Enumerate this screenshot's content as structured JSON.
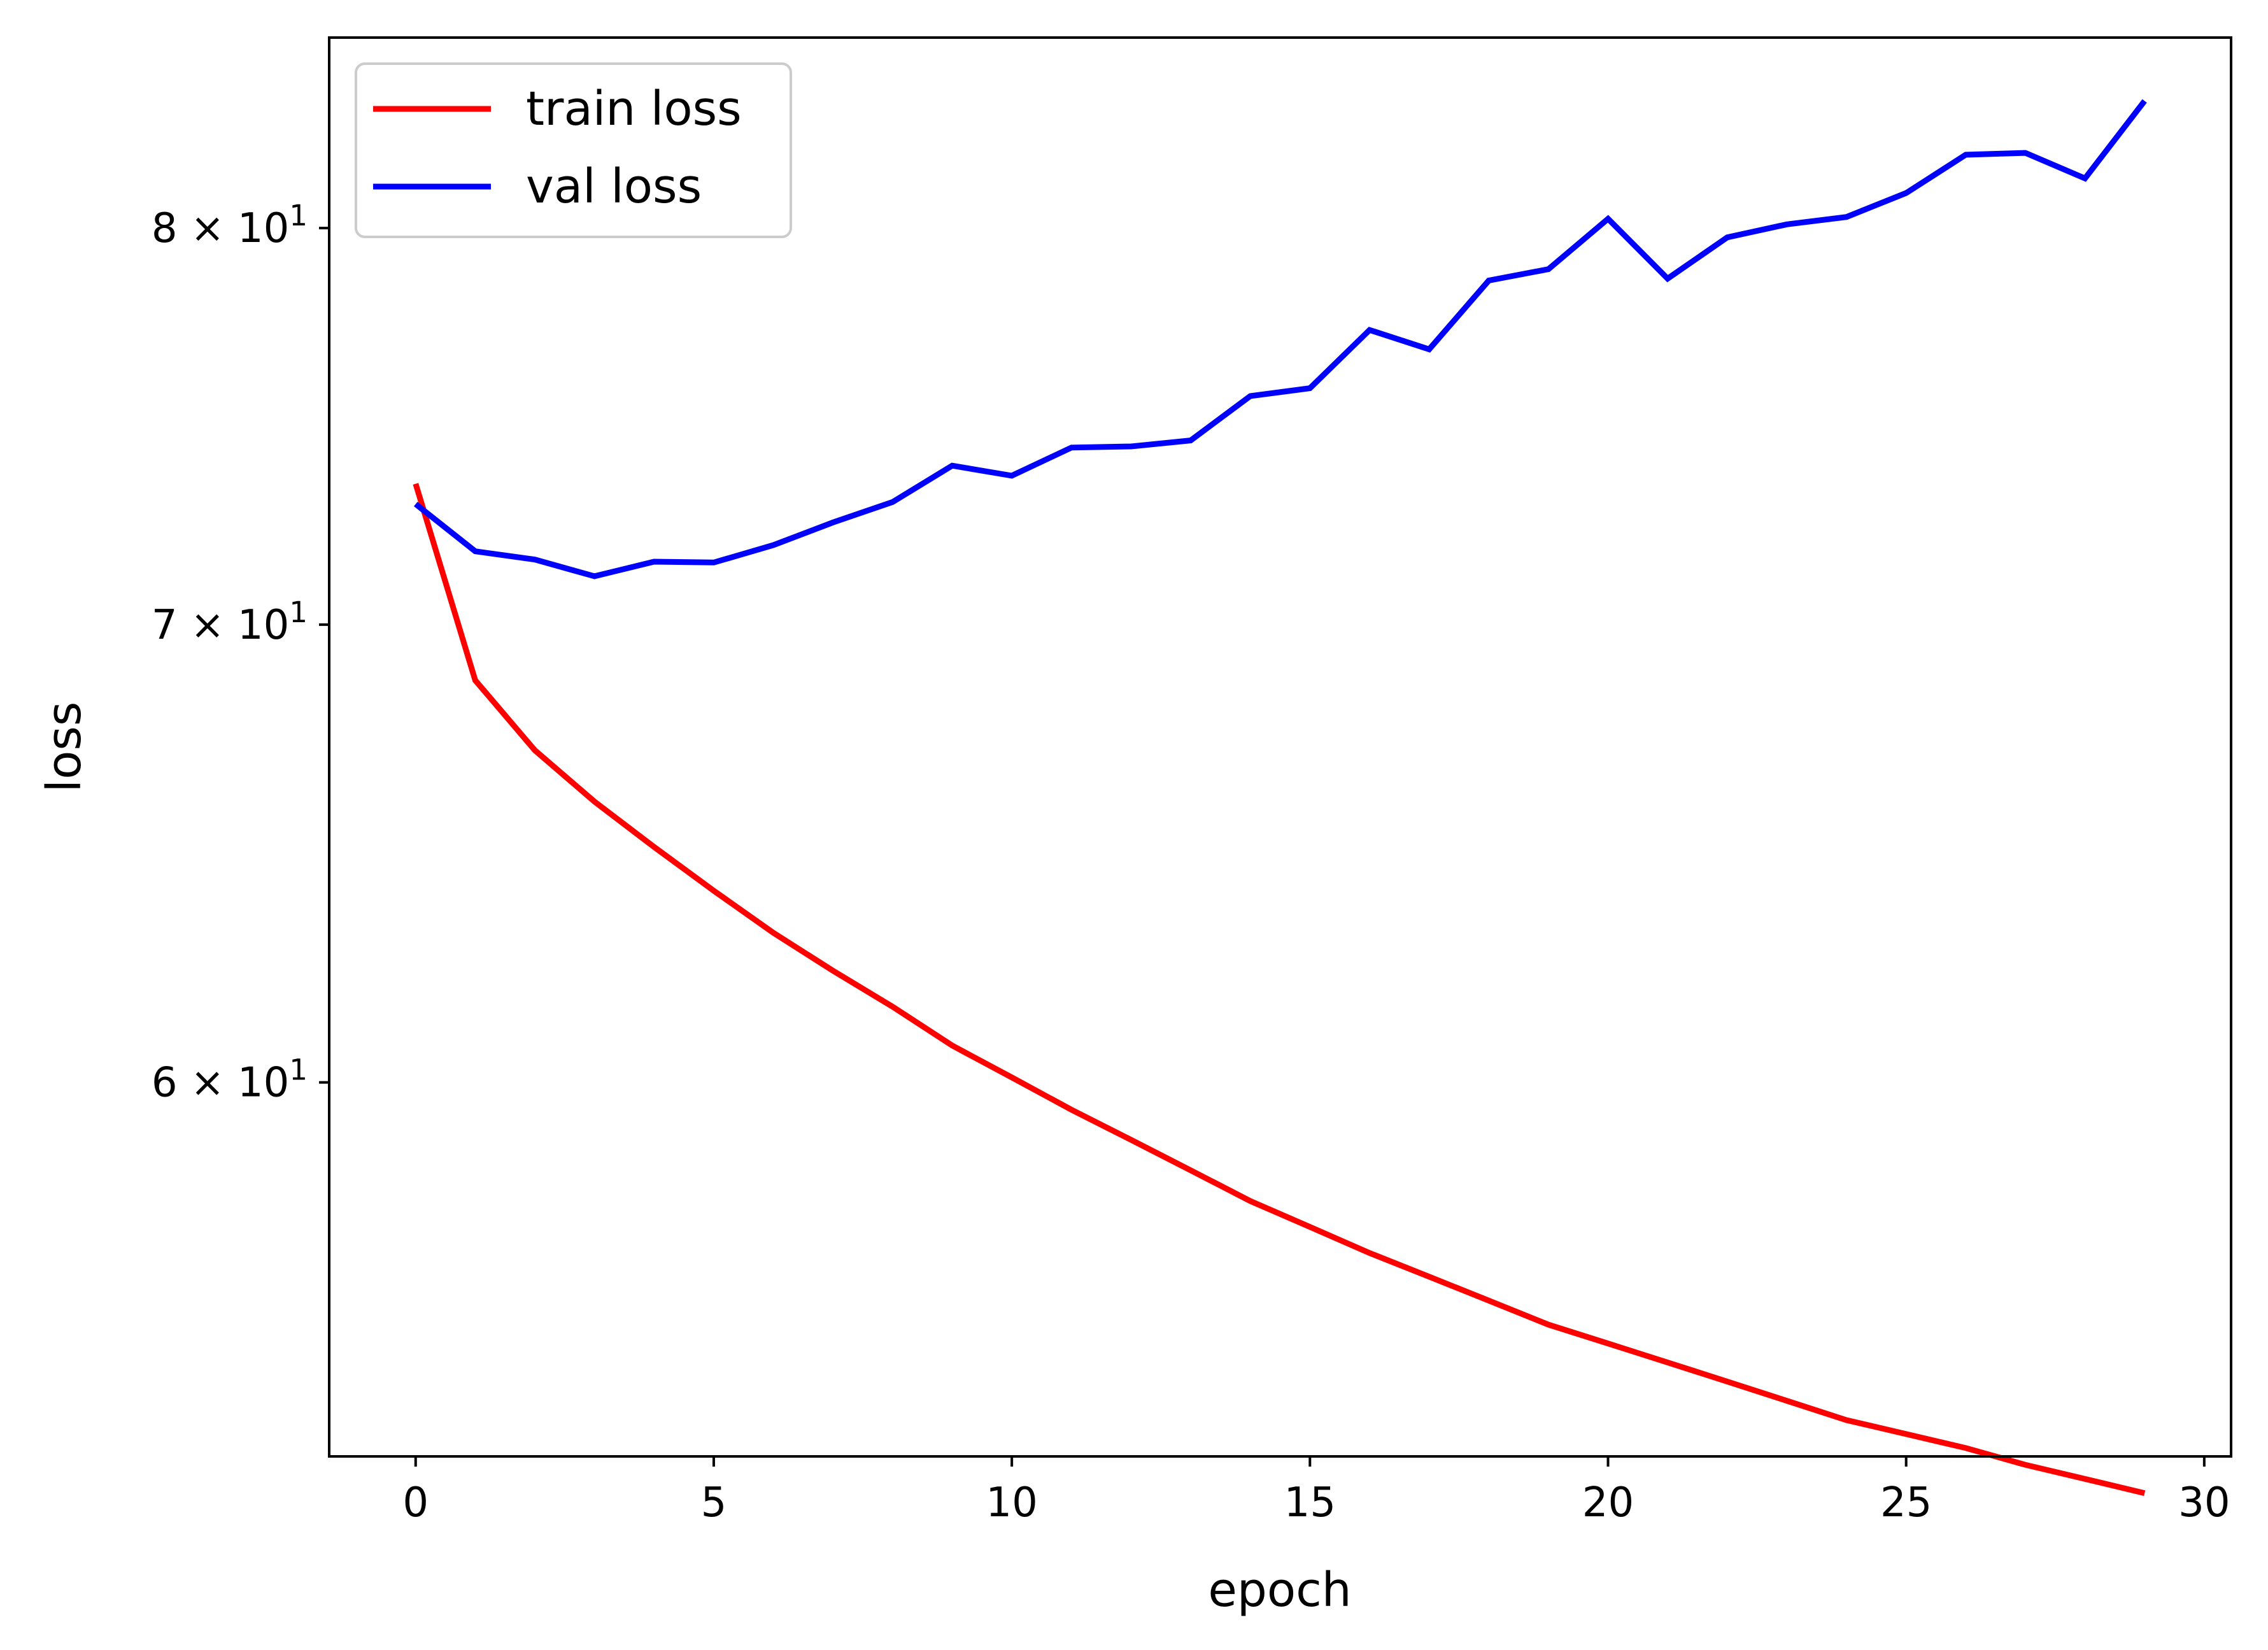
{
  "chart_data": {
    "type": "line",
    "xlabel": "epoch",
    "ylabel": "loss",
    "yscale": "log",
    "xlim": [
      -1.45,
      30.45
    ],
    "ylim": [
      52.9,
      85.3
    ],
    "grid": false,
    "legend_position": "top-left",
    "x_ticks": [
      0,
      5,
      10,
      15,
      20,
      25,
      30
    ],
    "x_tick_labels": [
      "0",
      "5",
      "10",
      "15",
      "20",
      "25",
      "30"
    ],
    "y_ticks": [
      {
        "value": 60,
        "mantissa": "6",
        "base": "× 10",
        "exponent": "1"
      },
      {
        "value": 70,
        "mantissa": "7",
        "base": "× 10",
        "exponent": "1"
      },
      {
        "value": 80,
        "mantissa": "8",
        "base": "× 10",
        "exponent": "1"
      }
    ],
    "x": [
      0,
      1,
      2,
      3,
      4,
      5,
      6,
      7,
      8,
      9,
      10,
      11,
      12,
      13,
      14,
      15,
      16,
      17,
      18,
      19,
      20,
      21,
      22,
      23,
      24,
      25,
      26,
      27,
      28,
      29
    ],
    "series": [
      {
        "name": "train loss",
        "color": "#ff0000",
        "values": [
          73.4,
          68.7,
          67.1,
          65.95,
          64.95,
          64.0,
          63.1,
          62.3,
          61.55,
          60.75,
          60.1,
          59.45,
          58.85,
          58.25,
          57.65,
          57.15,
          56.65,
          56.2,
          55.75,
          55.3,
          54.95,
          54.6,
          54.25,
          53.9,
          53.55,
          53.3,
          53.05,
          52.75,
          52.5,
          52.25
        ]
      },
      {
        "name": "val loss",
        "color": "#0000ff",
        "values": [
          72.9,
          71.75,
          71.55,
          71.15,
          71.5,
          71.48,
          71.9,
          72.45,
          72.95,
          73.85,
          73.6,
          74.3,
          74.33,
          74.48,
          75.6,
          75.8,
          77.3,
          76.8,
          78.6,
          78.9,
          80.25,
          78.65,
          79.75,
          80.1,
          80.3,
          80.95,
          82.0,
          82.05,
          81.35,
          83.5
        ]
      }
    ]
  }
}
